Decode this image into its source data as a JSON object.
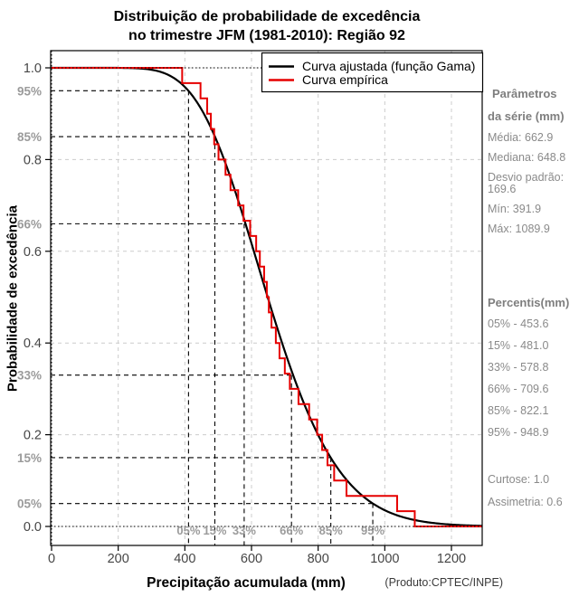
{
  "header": {
    "line1": "Distribuição de probabilidade de excedência",
    "line2": "no trimestre JFM (1981-2010): Região 92"
  },
  "footer_note": "(Produto:CPTEC/INPE)",
  "colors": {
    "fitted_curve": "#000000",
    "empirical_curve": "#e60000",
    "grid": "#cccccc",
    "guide": "#000000",
    "axis_text": "#454545",
    "percent_text": "#9b9b9b",
    "sidebar_text": "#8a8a8a"
  },
  "chart_data": {
    "type": "line",
    "title": "Distribuição de probabilidade de excedência no trimestre JFM (1981-2010): Região 92",
    "xlabel": "Precipitação acumulada (mm)",
    "ylabel": "Probabilidade de excedência",
    "xlim": [
      0,
      1290
    ],
    "ylim": [
      0,
      1
    ],
    "grid": true,
    "legend_position": "top-right-inside",
    "x_ticks": [
      {
        "mm": 0,
        "label": "0"
      },
      {
        "mm": 200,
        "label": "200"
      },
      {
        "mm": 400,
        "label": "400"
      },
      {
        "mm": 600,
        "label": "600"
      },
      {
        "mm": 800,
        "label": "800"
      },
      {
        "mm": 1000,
        "label": "1000"
      },
      {
        "mm": 1200,
        "label": "1200"
      }
    ],
    "y_ticks": [
      {
        "p": 0.0,
        "label": "0.0"
      },
      {
        "p": 0.2,
        "label": "0.2"
      },
      {
        "p": 0.4,
        "label": "0.4"
      },
      {
        "p": 0.6,
        "label": "0.6"
      },
      {
        "p": 0.8,
        "label": "0.8"
      },
      {
        "p": 1.0,
        "label": "1.0"
      }
    ],
    "series": [
      {
        "name": "Curva ajustada (função Gama)",
        "curve": "gamma_exceedance",
        "mean": 662.9,
        "sd": 169.6,
        "color": "#000000"
      },
      {
        "name": "Curva empírica",
        "curve": "empirical_step_exceedance",
        "color": "#e60000",
        "sorted_values": [
          391.9,
          447,
          467,
          478,
          488,
          501,
          522,
          537,
          560,
          576,
          596,
          614,
          625,
          638,
          646,
          652,
          660,
          673,
          684,
          700,
          715,
          741,
          773,
          797,
          812,
          828,
          848,
          885,
          1037,
          1089.9
        ]
      }
    ],
    "guides": [
      {
        "y_axis_label": "95%",
        "x_axis_label": "05%",
        "p": 0.95,
        "mm": 411
      },
      {
        "y_axis_label": "85%",
        "x_axis_label": "15%",
        "p": 0.85,
        "mm": 490
      },
      {
        "y_axis_label": "66%",
        "x_axis_label": "33%",
        "p": 0.66,
        "mm": 578
      },
      {
        "y_axis_label": "33%",
        "x_axis_label": "66%",
        "p": 0.33,
        "mm": 720
      },
      {
        "y_axis_label": "15%",
        "x_axis_label": "85%",
        "p": 0.15,
        "mm": 838
      },
      {
        "y_axis_label": "05%",
        "x_axis_label": "95%",
        "p": 0.05,
        "mm": 964
      }
    ]
  },
  "legend": {
    "items": [
      {
        "label": "Curva ajustada (função Gama)",
        "color": "#000000"
      },
      {
        "label": "Curva empírica",
        "color": "#e60000"
      }
    ]
  },
  "sidebar": {
    "params_header_line1": "Parâmetros",
    "params_header_line2": "da série (mm)",
    "params": [
      "Média: 662.9",
      "Mediana: 648.8",
      "Desvio padrão: 169.6",
      "Mín: 391.9",
      "Máx: 1089.9"
    ],
    "percentis_header": "Percentis(mm)",
    "percentis": [
      "05% - 453.6",
      "15% - 481.0",
      "33% - 578.8",
      "66% - 709.6",
      "85% - 822.1",
      "95% - 948.9"
    ],
    "extra": [
      "Curtose: 1.0",
      "Assimetria: 0.6"
    ]
  }
}
